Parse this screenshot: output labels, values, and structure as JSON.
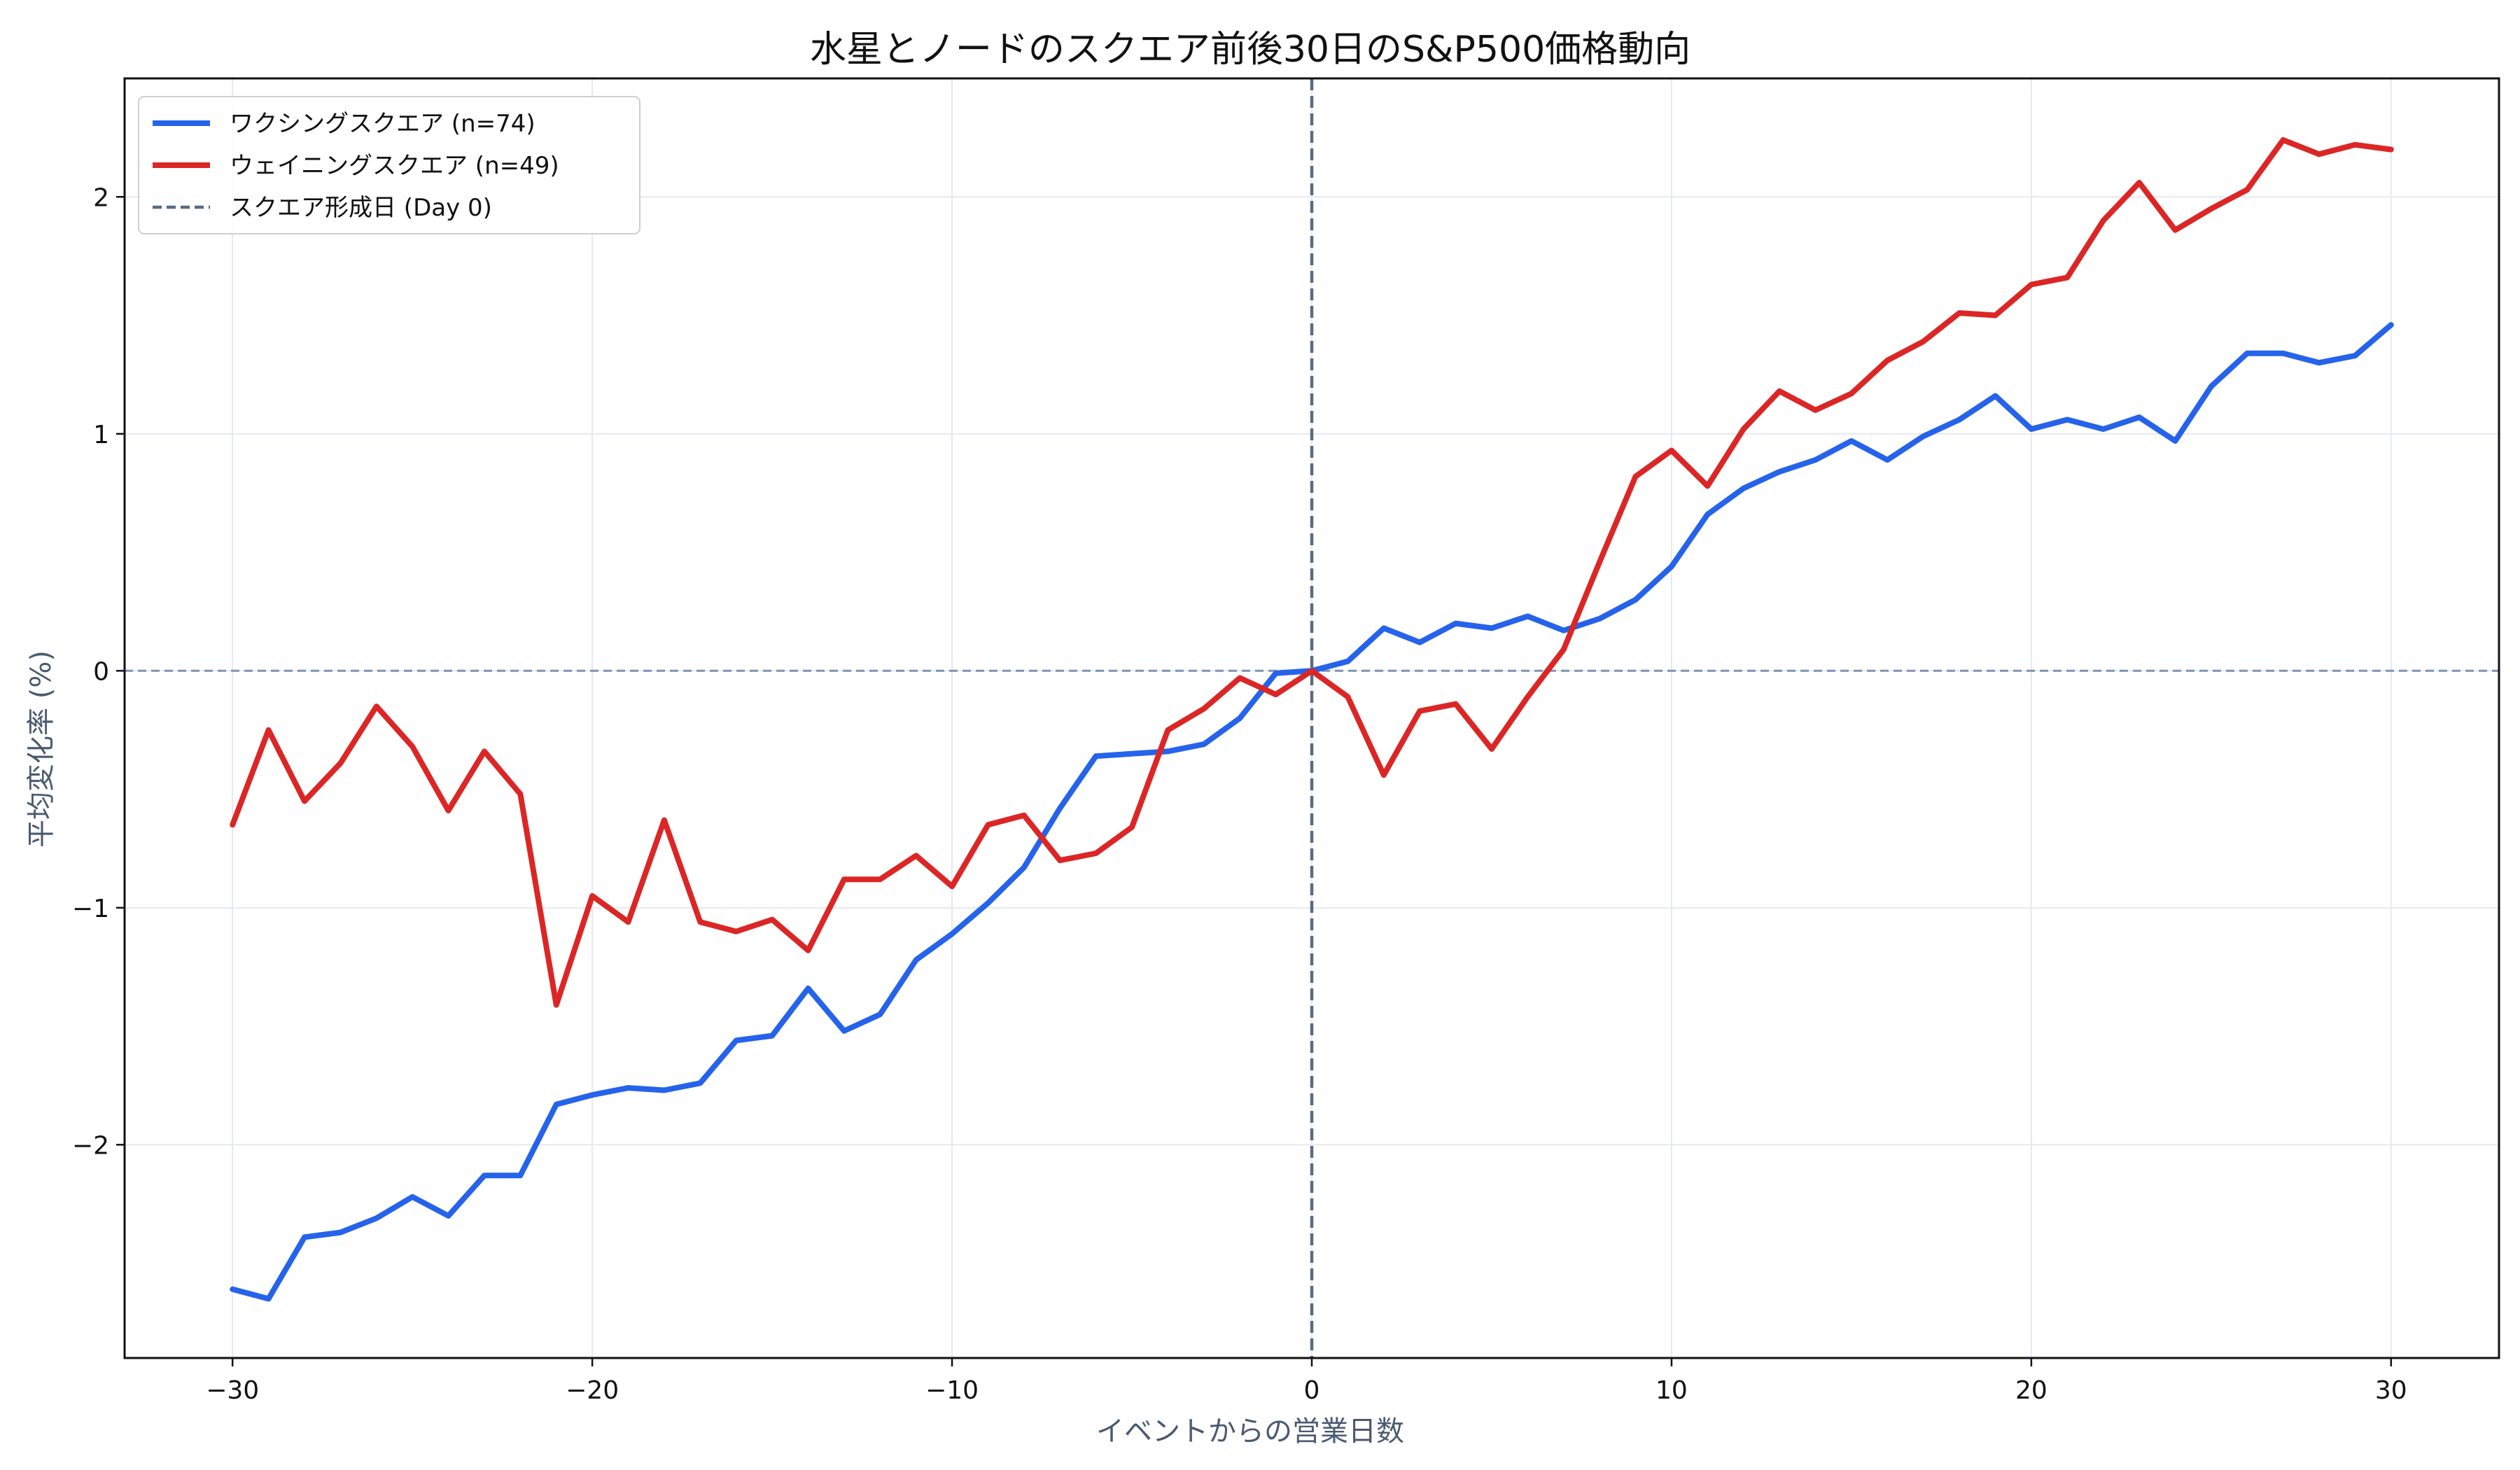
{
  "chart_data": {
    "type": "line",
    "title": "水星とノードのスクエア前後30日のS&P500価格動向",
    "xlabel": "イベントからの営業日数",
    "ylabel": "平均変化率 (%)",
    "xlim": [
      -33,
      33
    ],
    "ylim": [
      -2.9,
      2.5
    ],
    "xticks": [
      -30,
      -20,
      -10,
      0,
      10,
      20,
      30
    ],
    "xtick_labels": [
      "−30",
      "−20",
      "−10",
      "0",
      "10",
      "20",
      "30"
    ],
    "yticks": [
      -2,
      -1,
      0,
      1,
      2
    ],
    "ytick_labels": [
      "−2",
      "−1",
      "0",
      "1",
      "2"
    ],
    "grid": true,
    "legend_position": "top-left",
    "x": [
      -30,
      -29,
      -28,
      -27,
      -26,
      -25,
      -24,
      -23,
      -22,
      -21,
      -20,
      -19,
      -18,
      -17,
      -16,
      -15,
      -14,
      -13,
      -12,
      -11,
      -10,
      -9,
      -8,
      -7,
      -6,
      -5,
      -4,
      -3,
      -2,
      -1,
      0,
      1,
      2,
      3,
      4,
      5,
      6,
      7,
      8,
      9,
      10,
      11,
      12,
      13,
      14,
      15,
      16,
      17,
      18,
      19,
      20,
      21,
      22,
      23,
      24,
      25,
      26,
      27,
      28,
      29,
      30
    ],
    "series": [
      {
        "name": "ワクシングスクエア (n=74)",
        "color": "#2563eb",
        "values": [
          -2.61,
          -2.65,
          -2.39,
          -2.37,
          -2.31,
          -2.22,
          -2.3,
          -2.13,
          -2.13,
          -1.83,
          -1.79,
          -1.76,
          -1.77,
          -1.74,
          -1.56,
          -1.54,
          -1.34,
          -1.52,
          -1.45,
          -1.22,
          -1.11,
          -0.98,
          -0.83,
          -0.58,
          -0.36,
          -0.35,
          -0.34,
          -0.31,
          -0.2,
          -0.01,
          0.0,
          0.04,
          0.18,
          0.12,
          0.2,
          0.18,
          0.23,
          0.17,
          0.22,
          0.3,
          0.44,
          0.66,
          0.77,
          0.84,
          0.89,
          0.97,
          0.89,
          0.99,
          1.06,
          1.16,
          1.02,
          1.06,
          1.02,
          1.07,
          0.97,
          1.2,
          1.34,
          1.34,
          1.3,
          1.33,
          1.46
        ]
      },
      {
        "name": "ウェイニングスクエア (n=49)",
        "color": "#dc2626",
        "values": [
          -0.65,
          -0.25,
          -0.55,
          -0.39,
          -0.15,
          -0.32,
          -0.59,
          -0.34,
          -0.52,
          -1.41,
          -0.95,
          -1.06,
          -0.63,
          -1.06,
          -1.1,
          -1.05,
          -1.18,
          -0.88,
          -0.88,
          -0.78,
          -0.91,
          -0.65,
          -0.61,
          -0.8,
          -0.77,
          -0.66,
          -0.25,
          -0.16,
          -0.03,
          -0.1,
          0.0,
          -0.11,
          -0.44,
          -0.17,
          -0.14,
          -0.33,
          -0.11,
          0.09,
          0.46,
          0.82,
          0.93,
          0.78,
          1.02,
          1.18,
          1.1,
          1.17,
          1.31,
          1.39,
          1.51,
          1.5,
          1.63,
          1.66,
          1.9,
          2.06,
          1.86,
          1.95,
          2.03,
          2.24,
          2.18,
          2.22,
          2.2
        ]
      }
    ],
    "reference_line": {
      "name": "スクエア形成日 (Day 0)",
      "x": 0,
      "color": "#5a6b82"
    },
    "zero_line_color": "#7f93b3",
    "grid_color": "#e6e9ee"
  }
}
